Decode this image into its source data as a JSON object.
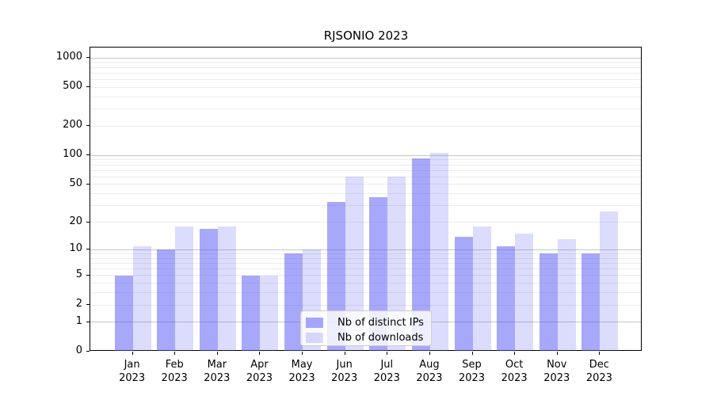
{
  "title": "RJSONIO 2023",
  "chart_data": {
    "type": "bar",
    "title": "RJSONIO 2023",
    "categories": [
      "Jan",
      "Feb",
      "Mar",
      "Apr",
      "May",
      "Jun",
      "Jul",
      "Aug",
      "Sep",
      "Oct",
      "Nov",
      "Dec"
    ],
    "year_label": "2023",
    "series": [
      {
        "name": "Nb of distinct IPs",
        "values": [
          5,
          10,
          17,
          5,
          9,
          33,
          37,
          93,
          14,
          11,
          9,
          9
        ],
        "color": "rgba(82,82,245,0.5)"
      },
      {
        "name": "Nb of downloads",
        "values": [
          11,
          18,
          18,
          5,
          10,
          60,
          60,
          106,
          18,
          15,
          13,
          26
        ],
        "color": "rgba(82,82,245,0.2)"
      }
    ],
    "xlabel": "",
    "ylabel": "",
    "yscale": "log1p",
    "yticks": [
      0,
      1,
      2,
      5,
      10,
      20,
      50,
      100,
      200,
      500,
      1000
    ],
    "ylim": [
      0,
      1277
    ],
    "grid": {
      "major_lines": [
        1,
        10,
        100,
        1000
      ],
      "minor_mantissas": [
        2,
        3,
        4,
        5,
        6,
        7,
        8,
        9
      ],
      "minor_decades": [
        1,
        10,
        100
      ]
    },
    "legend_position": "lower center inside plot"
  },
  "colors": {
    "bar_ips": "rgba(82,82,245,0.5)",
    "bar_downloads": "rgba(82,82,245,0.2)",
    "major_grid": "#c6c6c6",
    "minor_grid": "#ececec",
    "axis": "#000000",
    "legend_border": "#cccccc",
    "background": "#ffffff"
  }
}
